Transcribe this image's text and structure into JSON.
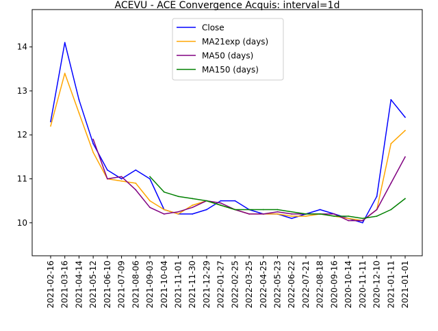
{
  "chart_data": {
    "type": "line",
    "title": "ACEVU - ACE Convergence Acquis: interval=1d",
    "xlabel": "",
    "ylabel": "",
    "x": [
      "2021-02-16",
      "2021-03-16",
      "2021-04-14",
      "2021-05-12",
      "2021-06-10",
      "2021-07-09",
      "2021-08-06",
      "2021-09-03",
      "2021-10-04",
      "2021-11-01",
      "2021-11-30",
      "2021-12-29",
      "2022-01-27",
      "2022-02-25",
      "2022-03-25",
      "2022-04-25",
      "2022-05-23",
      "2022-06-22",
      "2022-07-21",
      "2022-08-18",
      "2020-09-16",
      "2020-10-14",
      "2020-11-11",
      "2020-12-10",
      "2021-01-11",
      "2021-01-01"
    ],
    "yticks": [
      10,
      11,
      12,
      13,
      14
    ],
    "ylim": [
      9.25,
      14.85
    ],
    "grid": false,
    "legend": {
      "placement": "upper center"
    },
    "series": [
      {
        "name": "Close",
        "color": "#0000ff",
        "values": [
          12.3,
          14.1,
          12.8,
          11.8,
          11.2,
          11.0,
          11.2,
          11.0,
          10.3,
          10.2,
          10.2,
          10.3,
          10.5,
          10.5,
          10.3,
          10.2,
          10.2,
          10.1,
          10.2,
          10.3,
          10.2,
          10.1,
          10.0,
          10.6,
          12.8,
          12.4
        ]
      },
      {
        "name": "MA21exp (days)",
        "color": "#ffa500",
        "values": [
          12.2,
          13.4,
          12.5,
          11.6,
          11.0,
          10.95,
          10.9,
          10.5,
          10.3,
          10.2,
          10.4,
          10.5,
          10.4,
          10.3,
          10.2,
          10.2,
          10.2,
          10.15,
          10.15,
          10.2,
          10.15,
          10.1,
          10.05,
          10.3,
          11.8,
          12.1
        ]
      },
      {
        "name": "MA50 (days)",
        "color": "#800080",
        "values": [
          null,
          null,
          null,
          11.9,
          11.0,
          11.05,
          10.75,
          10.35,
          10.2,
          10.25,
          10.35,
          10.5,
          10.45,
          10.3,
          10.2,
          10.2,
          10.25,
          10.2,
          10.2,
          10.2,
          10.2,
          10.05,
          10.05,
          10.3,
          10.9,
          11.5
        ]
      },
      {
        "name": "MA150 (days)",
        "color": "#008000",
        "values": [
          null,
          null,
          null,
          null,
          null,
          null,
          null,
          11.05,
          10.7,
          10.6,
          10.55,
          10.5,
          10.4,
          10.3,
          10.3,
          10.3,
          10.3,
          10.25,
          10.2,
          10.2,
          10.15,
          10.15,
          10.1,
          10.15,
          10.3,
          10.55
        ]
      }
    ]
  }
}
